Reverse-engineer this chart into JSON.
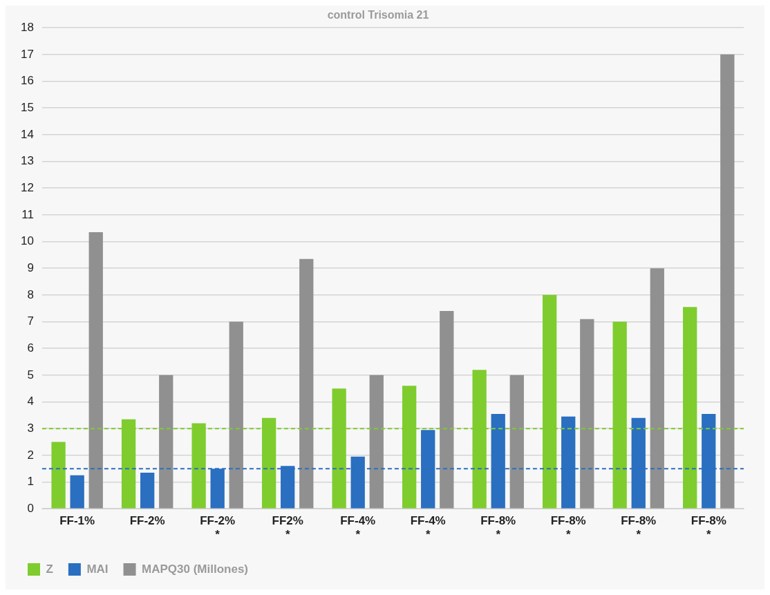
{
  "chart_data": {
    "type": "bar",
    "title": "control Trisomia 21",
    "categories": [
      "FF-1%",
      "FF-2%",
      "FF-2%\n*",
      "FF2%\n*",
      "FF-4%\n*",
      "FF-4%\n*",
      "FF-8%\n*",
      "FF-8%\n*",
      "FF-8%\n*",
      "FF-8%\n*"
    ],
    "series": [
      {
        "name": "Z",
        "color": "#7fcc2f",
        "values": [
          2.5,
          3.35,
          3.2,
          3.4,
          4.5,
          4.6,
          5.2,
          8.0,
          7.0,
          7.55
        ]
      },
      {
        "name": "MAI",
        "color": "#2a6fc0",
        "values": [
          1.25,
          1.35,
          1.5,
          1.6,
          1.95,
          2.95,
          3.55,
          3.45,
          3.4,
          3.55
        ]
      },
      {
        "name": "MAPQ30 (Millones)",
        "color": "#909090",
        "values": [
          10.35,
          5.0,
          7.0,
          9.35,
          5.0,
          7.4,
          5.0,
          7.1,
          9.0,
          17.0
        ]
      }
    ],
    "ref_lines": [
      {
        "axis": "y",
        "value": 3,
        "color": "#7fcc2f",
        "line_style": "dashed"
      },
      {
        "axis": "y",
        "value": 1.5,
        "color": "#2a6fc0",
        "line_style": "dashed"
      }
    ],
    "ylim": [
      0,
      18
    ],
    "yticks": [
      0,
      1,
      2,
      3,
      4,
      5,
      6,
      7,
      8,
      9,
      10,
      11,
      12,
      13,
      14,
      15,
      16,
      17,
      18
    ],
    "grid": "y",
    "legend": "bottom left"
  }
}
